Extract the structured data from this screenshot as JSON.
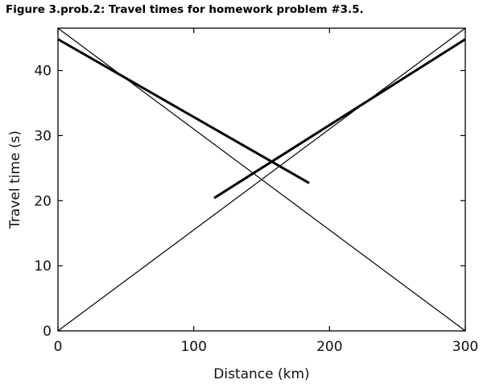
{
  "caption": "Figure 3.prob.2: Travel times for homework problem #3.5.",
  "chart_data": {
    "type": "line",
    "title": "",
    "xlabel": "Distance (km)",
    "ylabel": "Travel time (s)",
    "xlim": [
      0,
      300
    ],
    "ylim": [
      0,
      46.5
    ],
    "xticks": [
      0,
      100,
      200,
      300
    ],
    "yticks": [
      0,
      10,
      20,
      30,
      40
    ],
    "grid": false,
    "series": [
      {
        "x": [
          0,
          300
        ],
        "y": [
          0,
          46.5
        ],
        "weight": "thin"
      },
      {
        "x": [
          0,
          300
        ],
        "y": [
          46.5,
          0
        ],
        "weight": "thin"
      },
      {
        "x": [
          0,
          185
        ],
        "y": [
          44.8,
          22.7
        ],
        "weight": "thick"
      },
      {
        "x": [
          115,
          300
        ],
        "y": [
          20.4,
          44.8
        ],
        "weight": "thick"
      }
    ]
  }
}
